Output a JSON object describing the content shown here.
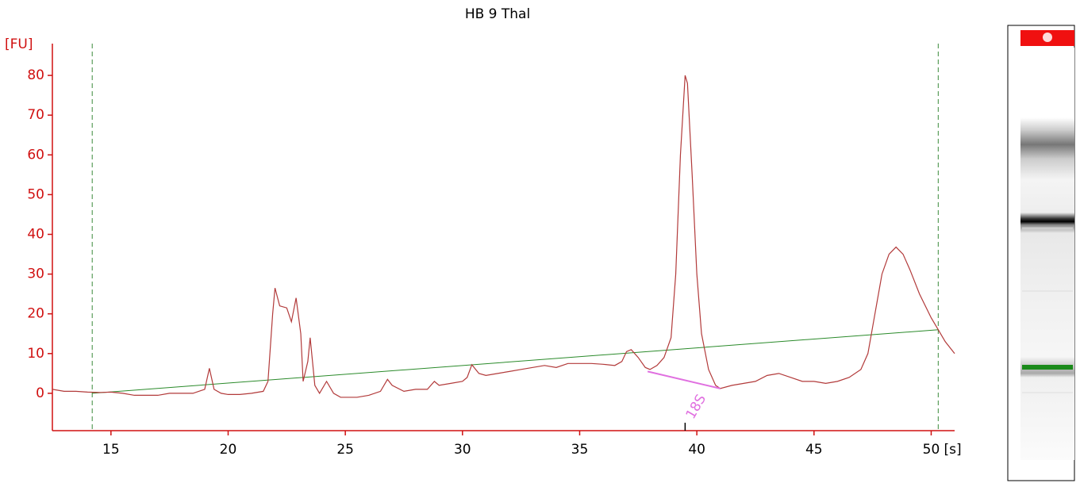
{
  "chart_data": {
    "type": "line",
    "title": "HB 9 Thal",
    "ylabel": "[FU]",
    "xlabel": "[s]",
    "xlim": [
      12.5,
      51
    ],
    "ylim": [
      -9.4,
      88
    ],
    "xticks": [
      15,
      20,
      25,
      30,
      35,
      40,
      45,
      50
    ],
    "yticks": [
      0,
      10,
      20,
      30,
      40,
      50,
      60,
      70,
      80
    ],
    "axis_color": "#d01010",
    "series": [
      {
        "color": "#b23a3a",
        "x": [
          12.5,
          13,
          13.5,
          14,
          14.5,
          15,
          15.5,
          16,
          16.5,
          17,
          17.5,
          18,
          18.5,
          19,
          19.2,
          19.4,
          19.7,
          20,
          20.5,
          21,
          21.5,
          21.7,
          21.9,
          22,
          22.2,
          22.5,
          22.7,
          22.9,
          23.1,
          23.2,
          23.4,
          23.5,
          23.6,
          23.7,
          23.9,
          24.2,
          24.5,
          24.8,
          25.5,
          26,
          26.5,
          26.8,
          27,
          27.5,
          28,
          28.5,
          28.8,
          29,
          29.5,
          30,
          30.2,
          30.4,
          30.7,
          31,
          31.5,
          32,
          32.5,
          33,
          33.5,
          34,
          34.5,
          35,
          35.5,
          36,
          36.5,
          36.8,
          37,
          37.2,
          37.5,
          37.8,
          38,
          38.3,
          38.6,
          38.9,
          39.1,
          39.3,
          39.5,
          39.6,
          39.8,
          40,
          40.2,
          40.5,
          40.8,
          41,
          41.5,
          42,
          42.5,
          43,
          43.5,
          44,
          44.5,
          45,
          45.5,
          46,
          46.5,
          47,
          47.3,
          47.6,
          47.9,
          48.2,
          48.5,
          48.8,
          49.1,
          49.5,
          50,
          50.3,
          50.6,
          51
        ],
        "values": [
          1,
          0.5,
          0.5,
          0.3,
          0.2,
          0.3,
          0,
          -0.5,
          -0.5,
          -0.5,
          0,
          0,
          0,
          1,
          6.3,
          1,
          0,
          -0.3,
          -0.3,
          0,
          0.5,
          3,
          20,
          26.5,
          22,
          21.5,
          18,
          24,
          15,
          3,
          8,
          14,
          8,
          2,
          0,
          3,
          0,
          -1,
          -1,
          -0.5,
          0.5,
          3.5,
          2,
          0.5,
          1,
          1,
          3,
          2,
          2.5,
          3,
          4,
          7.2,
          5,
          4.5,
          5,
          5.5,
          6,
          6.5,
          7,
          6.5,
          7.5,
          7.5,
          7.5,
          7.3,
          7,
          8,
          10.5,
          11,
          9,
          6.5,
          6,
          7,
          9,
          14,
          30,
          60,
          80,
          78,
          55,
          30,
          15,
          6,
          2,
          1.2,
          2,
          2.5,
          3,
          4.5,
          5,
          4,
          3,
          3,
          2.5,
          3,
          4,
          6,
          10,
          20,
          30,
          35,
          36.8,
          35,
          31,
          25,
          19,
          16,
          13,
          10
        ]
      }
    ],
    "window": {
      "color": "#3a8a3a",
      "x": [
        14.2,
        50.3
      ]
    },
    "baseline": {
      "color": "#2a8a2a",
      "x": [
        14.2,
        50.3
      ],
      "values": [
        0,
        16
      ]
    },
    "peak": {
      "label": "18S",
      "color": "#e070e0",
      "x": [
        37.9,
        41.0
      ],
      "values": [
        5.5,
        1.2
      ],
      "position": 39.5
    }
  }
}
